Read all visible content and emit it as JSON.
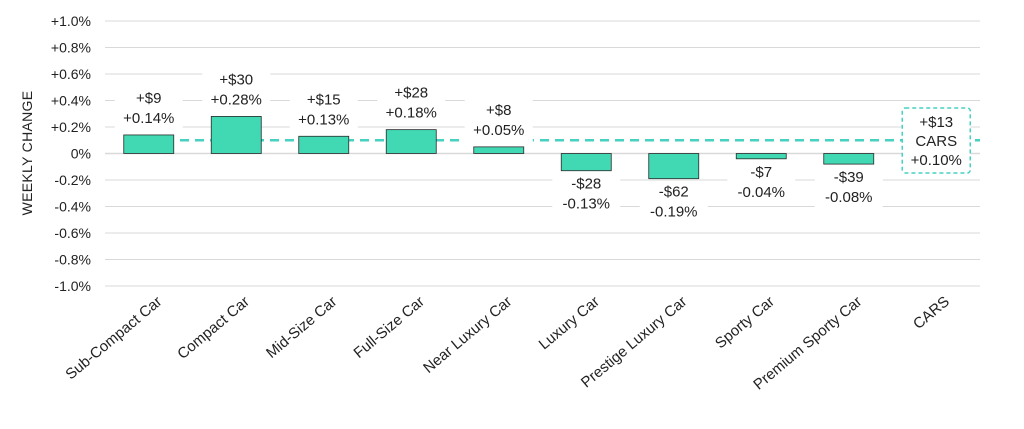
{
  "chart_data": {
    "type": "bar",
    "title": "",
    "xlabel": "",
    "ylabel": "WEEKLY CHANGE",
    "ylim": [
      -1.0,
      1.0
    ],
    "y_ticks": [
      1.0,
      0.8,
      0.6,
      0.4,
      0.2,
      0.0,
      -0.2,
      -0.4,
      -0.6,
      -0.8,
      -1.0
    ],
    "y_tick_labels": [
      "+1.0%",
      "+0.8%",
      "+0.6%",
      "+0.4%",
      "+0.2%",
      "0%",
      "-0.2%",
      "-0.4%",
      "-0.6%",
      "-0.8%",
      "-1.0%"
    ],
    "grid": true,
    "categories": [
      "Sub-Compact Car",
      "Compact Car",
      "Mid-Size Car",
      "Full-Size Car",
      "Near Luxury Car",
      "Luxury Car",
      "Prestige Luxury Car",
      "Sporty Car",
      "Premium Sporty Car",
      "CARS"
    ],
    "values": [
      0.14,
      0.28,
      0.13,
      0.18,
      0.05,
      -0.13,
      -0.19,
      -0.04,
      -0.08,
      null
    ],
    "dollar_labels": [
      "+$9",
      "+$30",
      "+$15",
      "+$28",
      "+$8",
      "-$28",
      "-$62",
      "-$7",
      "-$39",
      "+$13"
    ],
    "percent_labels": [
      "+0.14%",
      "+0.28%",
      "+0.13%",
      "+0.18%",
      "+0.05%",
      "-0.13%",
      "-0.19%",
      "-0.04%",
      "-0.08%",
      "+0.10%"
    ],
    "reference_line": {
      "value": 0.1,
      "style": "dashed",
      "label_dollar": "+$13",
      "label_name": "CARS",
      "label_percent": "+0.10%"
    },
    "colors": {
      "bar": "#40d9b3",
      "bar_stroke": "#2a2a2a",
      "reference": "#46d1c1",
      "grid": "#d9d9d9"
    }
  }
}
